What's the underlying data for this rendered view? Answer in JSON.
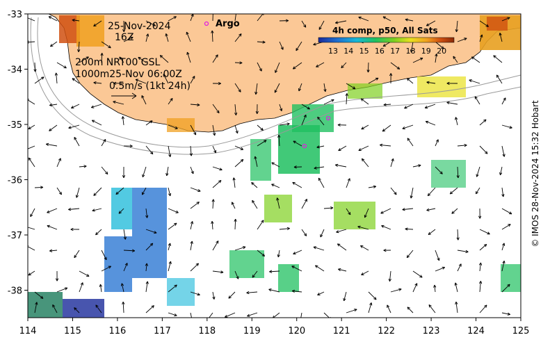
{
  "map": {
    "date": "25-Nov-2024",
    "hour": "16Z",
    "argo_label": "Argo",
    "depth_line1": "200m  NRT00 GSL",
    "depth_line2": "1000m25-Nov 06:00Z",
    "vector_scale": "0.5m/s (1kt 24h)",
    "colorbar_title": "4h comp, p50, All Sats",
    "colorbar_ticks": [
      "13",
      "14",
      "15",
      "16",
      "17",
      "18",
      "19",
      "20"
    ],
    "credit": "© IMOS 28-Nov-2024 15:32 Hobart",
    "x_ticks": [
      "114",
      "115",
      "116",
      "117",
      "118",
      "119",
      "120",
      "121",
      "122",
      "123",
      "124",
      "125"
    ],
    "y_ticks": [
      "-33",
      "-34",
      "-35",
      "-36",
      "-37",
      "-38"
    ],
    "colors": {
      "land": "#fbc896",
      "argo": "#e020e0",
      "colorbar": [
        "#1a2a9a",
        "#1f6fd0",
        "#18b8d8",
        "#20c060",
        "#7fd020",
        "#e8e020",
        "#f0a020",
        "#d05010",
        "#8a2a08"
      ]
    }
  }
}
